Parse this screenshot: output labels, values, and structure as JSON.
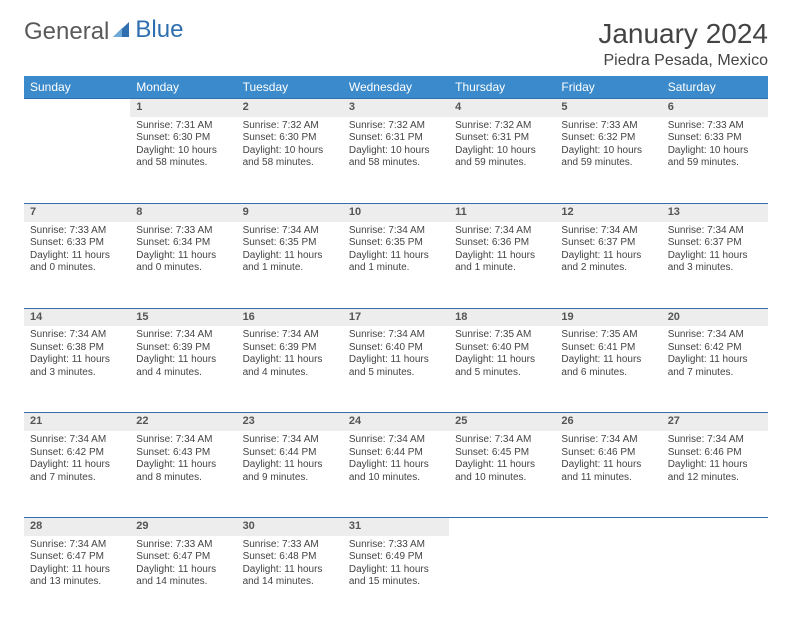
{
  "brand": {
    "part1": "General",
    "part2": "Blue"
  },
  "title": "January 2024",
  "location": "Piedra Pesada, Mexico",
  "colors": {
    "header_bg": "#3b8acb",
    "accent_line": "#2f6fb0",
    "daynum_bg": "#ededed",
    "text": "#444444"
  },
  "weekdays": [
    "Sunday",
    "Monday",
    "Tuesday",
    "Wednesday",
    "Thursday",
    "Friday",
    "Saturday"
  ],
  "weeks": [
    [
      null,
      {
        "n": "1",
        "sunrise": "7:31 AM",
        "sunset": "6:30 PM",
        "day_h": "10",
        "day_m": "58"
      },
      {
        "n": "2",
        "sunrise": "7:32 AM",
        "sunset": "6:30 PM",
        "day_h": "10",
        "day_m": "58"
      },
      {
        "n": "3",
        "sunrise": "7:32 AM",
        "sunset": "6:31 PM",
        "day_h": "10",
        "day_m": "58"
      },
      {
        "n": "4",
        "sunrise": "7:32 AM",
        "sunset": "6:31 PM",
        "day_h": "10",
        "day_m": "59"
      },
      {
        "n": "5",
        "sunrise": "7:33 AM",
        "sunset": "6:32 PM",
        "day_h": "10",
        "day_m": "59"
      },
      {
        "n": "6",
        "sunrise": "7:33 AM",
        "sunset": "6:33 PM",
        "day_h": "10",
        "day_m": "59"
      }
    ],
    [
      {
        "n": "7",
        "sunrise": "7:33 AM",
        "sunset": "6:33 PM",
        "day_h": "11",
        "day_m": "0"
      },
      {
        "n": "8",
        "sunrise": "7:33 AM",
        "sunset": "6:34 PM",
        "day_h": "11",
        "day_m": "0"
      },
      {
        "n": "9",
        "sunrise": "7:34 AM",
        "sunset": "6:35 PM",
        "day_h": "11",
        "day_m": "1"
      },
      {
        "n": "10",
        "sunrise": "7:34 AM",
        "sunset": "6:35 PM",
        "day_h": "11",
        "day_m": "1"
      },
      {
        "n": "11",
        "sunrise": "7:34 AM",
        "sunset": "6:36 PM",
        "day_h": "11",
        "day_m": "1"
      },
      {
        "n": "12",
        "sunrise": "7:34 AM",
        "sunset": "6:37 PM",
        "day_h": "11",
        "day_m": "2"
      },
      {
        "n": "13",
        "sunrise": "7:34 AM",
        "sunset": "6:37 PM",
        "day_h": "11",
        "day_m": "3"
      }
    ],
    [
      {
        "n": "14",
        "sunrise": "7:34 AM",
        "sunset": "6:38 PM",
        "day_h": "11",
        "day_m": "3"
      },
      {
        "n": "15",
        "sunrise": "7:34 AM",
        "sunset": "6:39 PM",
        "day_h": "11",
        "day_m": "4"
      },
      {
        "n": "16",
        "sunrise": "7:34 AM",
        "sunset": "6:39 PM",
        "day_h": "11",
        "day_m": "4"
      },
      {
        "n": "17",
        "sunrise": "7:34 AM",
        "sunset": "6:40 PM",
        "day_h": "11",
        "day_m": "5"
      },
      {
        "n": "18",
        "sunrise": "7:35 AM",
        "sunset": "6:40 PM",
        "day_h": "11",
        "day_m": "5"
      },
      {
        "n": "19",
        "sunrise": "7:35 AM",
        "sunset": "6:41 PM",
        "day_h": "11",
        "day_m": "6"
      },
      {
        "n": "20",
        "sunrise": "7:34 AM",
        "sunset": "6:42 PM",
        "day_h": "11",
        "day_m": "7"
      }
    ],
    [
      {
        "n": "21",
        "sunrise": "7:34 AM",
        "sunset": "6:42 PM",
        "day_h": "11",
        "day_m": "7"
      },
      {
        "n": "22",
        "sunrise": "7:34 AM",
        "sunset": "6:43 PM",
        "day_h": "11",
        "day_m": "8"
      },
      {
        "n": "23",
        "sunrise": "7:34 AM",
        "sunset": "6:44 PM",
        "day_h": "11",
        "day_m": "9"
      },
      {
        "n": "24",
        "sunrise": "7:34 AM",
        "sunset": "6:44 PM",
        "day_h": "11",
        "day_m": "10"
      },
      {
        "n": "25",
        "sunrise": "7:34 AM",
        "sunset": "6:45 PM",
        "day_h": "11",
        "day_m": "10"
      },
      {
        "n": "26",
        "sunrise": "7:34 AM",
        "sunset": "6:46 PM",
        "day_h": "11",
        "day_m": "11"
      },
      {
        "n": "27",
        "sunrise": "7:34 AM",
        "sunset": "6:46 PM",
        "day_h": "11",
        "day_m": "12"
      }
    ],
    [
      {
        "n": "28",
        "sunrise": "7:34 AM",
        "sunset": "6:47 PM",
        "day_h": "11",
        "day_m": "13"
      },
      {
        "n": "29",
        "sunrise": "7:33 AM",
        "sunset": "6:47 PM",
        "day_h": "11",
        "day_m": "14"
      },
      {
        "n": "30",
        "sunrise": "7:33 AM",
        "sunset": "6:48 PM",
        "day_h": "11",
        "day_m": "14"
      },
      {
        "n": "31",
        "sunrise": "7:33 AM",
        "sunset": "6:49 PM",
        "day_h": "11",
        "day_m": "15"
      },
      null,
      null,
      null
    ]
  ],
  "labels": {
    "sunrise": "Sunrise:",
    "sunset": "Sunset:",
    "daylight": "Daylight:",
    "hours": "hours",
    "and": "and",
    "minute_singular": "minute.",
    "minute_plural": "minutes."
  }
}
